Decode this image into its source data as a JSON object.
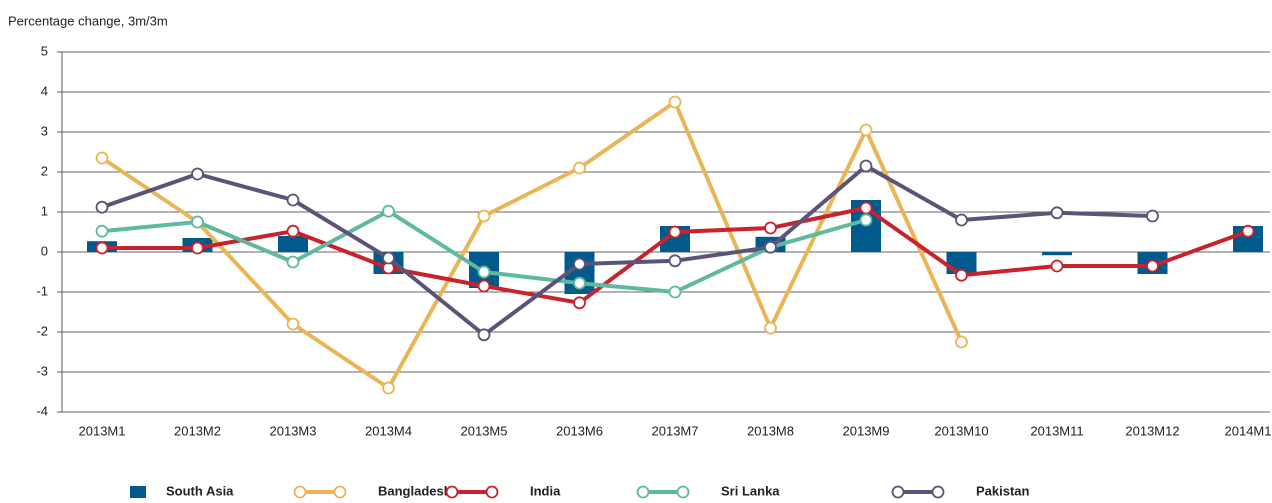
{
  "chart_data": {
    "type": "combo",
    "y_label": "Percentage change, 3m/3m",
    "categories": [
      "2013M1",
      "2013M2",
      "2013M3",
      "2013M4",
      "2013M5",
      "2013M6",
      "2013M7",
      "2013M8",
      "2013M9",
      "2013M10",
      "2013M11",
      "2013M12",
      "2014M1"
    ],
    "ylim": [
      -4,
      5
    ],
    "yticks": [
      -4,
      -3,
      -2,
      -1,
      0,
      1,
      2,
      3,
      4,
      5
    ],
    "grid": true,
    "legend": "bottom",
    "series": [
      {
        "name": "South Asia",
        "kind": "bar",
        "color": "#005b8c",
        "values": [
          0.27,
          0.35,
          0.4,
          -0.55,
          -0.9,
          -1.05,
          0.65,
          0.38,
          1.3,
          -0.55,
          -0.08,
          -0.55,
          0.65
        ]
      },
      {
        "name": "Bangladesh",
        "kind": "line",
        "color": "#e9b556",
        "values": [
          2.35,
          0.75,
          -1.8,
          -3.4,
          0.9,
          2.1,
          3.75,
          -1.9,
          3.05,
          -2.25,
          null,
          null,
          null
        ]
      },
      {
        "name": "India",
        "kind": "line",
        "color": "#c8232c",
        "values": [
          0.1,
          0.1,
          0.52,
          -0.4,
          -0.85,
          -1.27,
          0.5,
          0.6,
          1.1,
          -0.58,
          -0.35,
          -0.35,
          0.52
        ]
      },
      {
        "name": "Sri Lanka",
        "kind": "line",
        "color": "#5fb8a0",
        "values": [
          0.52,
          0.75,
          -0.25,
          1.02,
          -0.5,
          -0.78,
          -1.0,
          0.12,
          0.8,
          null,
          null,
          null,
          null
        ]
      },
      {
        "name": "Pakistan",
        "kind": "line",
        "color": "#5b5478",
        "values": [
          1.12,
          1.95,
          1.3,
          -0.15,
          -2.07,
          -0.3,
          -0.22,
          0.12,
          2.15,
          0.8,
          0.98,
          0.9,
          null
        ]
      }
    ]
  }
}
